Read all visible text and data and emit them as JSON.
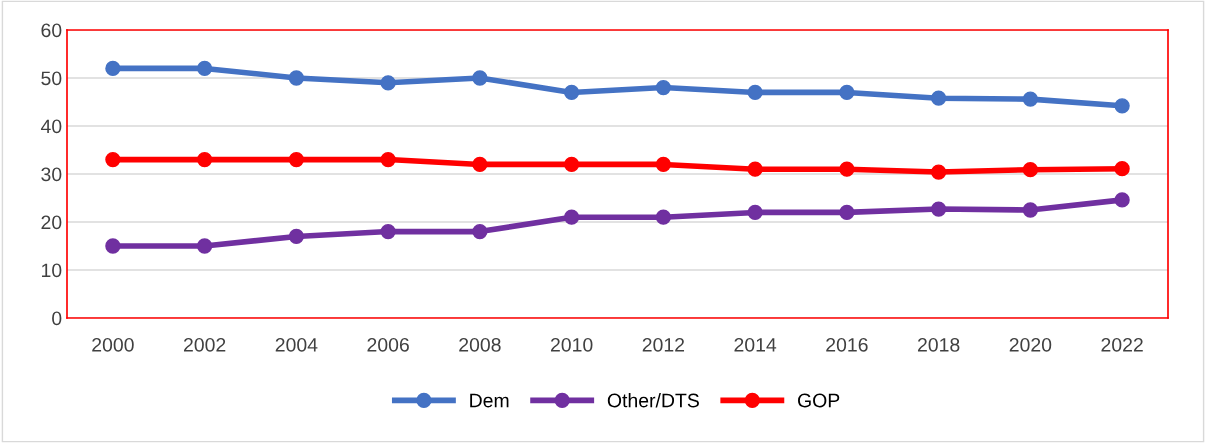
{
  "chart_data": {
    "type": "line",
    "categories": [
      "2000",
      "2002",
      "2004",
      "2006",
      "2008",
      "2010",
      "2012",
      "2014",
      "2016",
      "2018",
      "2020",
      "2022"
    ],
    "series": [
      {
        "name": "Dem",
        "color": "#4472c4",
        "values": [
          52,
          52,
          50,
          49,
          50,
          47,
          48,
          47,
          47,
          45.8,
          45.6,
          44.2
        ]
      },
      {
        "name": "Other/DTS",
        "color": "#7030a0",
        "values": [
          15,
          15,
          17,
          18,
          18,
          21,
          21,
          22,
          22,
          22.7,
          22.5,
          24.6
        ]
      },
      {
        "name": "GOP",
        "color": "#ff0000",
        "values": [
          33,
          33,
          33,
          33,
          32,
          32,
          32,
          31,
          31,
          30.4,
          30.9,
          31.1
        ]
      }
    ],
    "ylim": [
      0,
      60
    ],
    "yticks": [
      0,
      10,
      20,
      30,
      40,
      50,
      60
    ],
    "grid": "y",
    "legend": "bottom",
    "marker": "circle",
    "line_style": "solid"
  }
}
